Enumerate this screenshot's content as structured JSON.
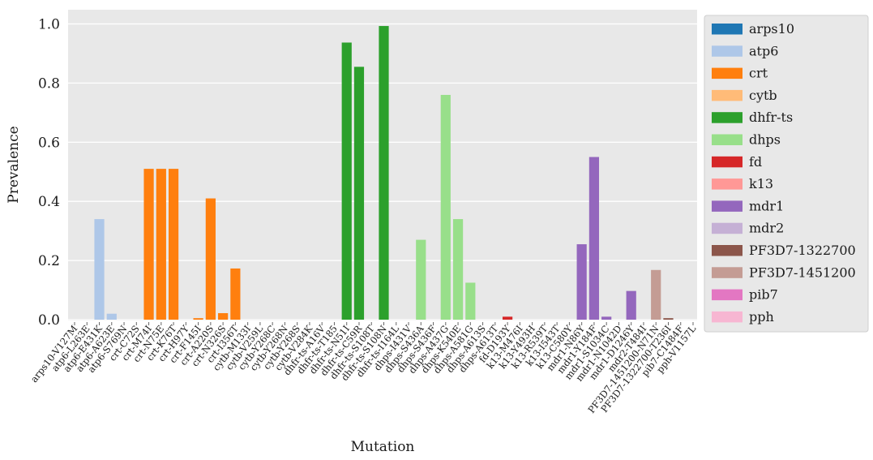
{
  "chart_data": {
    "type": "bar",
    "title": "",
    "xlabel": "Mutation",
    "ylabel": "Prevalence",
    "ylim": [
      0,
      1.05
    ],
    "yticks": [
      "0.0",
      "0.2",
      "0.4",
      "0.6",
      "0.8",
      "1.0"
    ],
    "grid": true,
    "legend_position": "right",
    "legend": [
      {
        "name": "arps10",
        "color": "#1f77b4"
      },
      {
        "name": "atp6",
        "color": "#aec7e8"
      },
      {
        "name": "crt",
        "color": "#ff7f0e"
      },
      {
        "name": "cytb",
        "color": "#ffbb78"
      },
      {
        "name": "dhfr-ts",
        "color": "#2ca02c"
      },
      {
        "name": "dhps",
        "color": "#98df8a"
      },
      {
        "name": "fd",
        "color": "#d62728"
      },
      {
        "name": "k13",
        "color": "#ff9896"
      },
      {
        "name": "mdr1",
        "color": "#9467bd"
      },
      {
        "name": "mdr2",
        "color": "#c5b0d5"
      },
      {
        "name": "PF3D7-1322700",
        "color": "#8c564b"
      },
      {
        "name": "PF3D7-1451200",
        "color": "#c49c94"
      },
      {
        "name": "pib7",
        "color": "#e377c2"
      },
      {
        "name": "pph",
        "color": "#f7b6d2"
      }
    ],
    "bars": [
      {
        "label": "arps10-V127M",
        "gene": "arps10",
        "value": 0.0
      },
      {
        "label": "atp6-L263E",
        "gene": "atp6",
        "value": 0.0
      },
      {
        "label": "atp6-E431K",
        "gene": "atp6",
        "value": 0.34
      },
      {
        "label": "atp6-A623E",
        "gene": "atp6",
        "value": 0.02
      },
      {
        "label": "atp6-S769N",
        "gene": "atp6",
        "value": 0.0
      },
      {
        "label": "crt-C72S",
        "gene": "crt",
        "value": 0.0
      },
      {
        "label": "crt-M74I",
        "gene": "crt",
        "value": 0.51
      },
      {
        "label": "crt-N75E",
        "gene": "crt",
        "value": 0.51
      },
      {
        "label": "crt-K76T",
        "gene": "crt",
        "value": 0.51
      },
      {
        "label": "crt-H97Y",
        "gene": "crt",
        "value": 0.0
      },
      {
        "label": "crt-F145I",
        "gene": "crt",
        "value": 0.005
      },
      {
        "label": "crt-A220S",
        "gene": "crt",
        "value": 0.41
      },
      {
        "label": "crt-N326S",
        "gene": "crt",
        "value": 0.022
      },
      {
        "label": "crt-I356T",
        "gene": "crt",
        "value": 0.173
      },
      {
        "label": "cytb-M133I",
        "gene": "cytb",
        "value": 0.0
      },
      {
        "label": "cytb-V259L",
        "gene": "cytb",
        "value": 0.0
      },
      {
        "label": "cytb-Y268C",
        "gene": "cytb",
        "value": 0.0
      },
      {
        "label": "cytb-Y268N",
        "gene": "cytb",
        "value": 0.0
      },
      {
        "label": "cytb-Y268S",
        "gene": "cytb",
        "value": 0.0
      },
      {
        "label": "cytb-V284K",
        "gene": "cytb",
        "value": 0.0
      },
      {
        "label": "dhfr-ts-A16V",
        "gene": "dhfr-ts",
        "value": 0.0
      },
      {
        "label": "dhfr-ts-T185",
        "gene": "dhfr-ts",
        "value": 0.0
      },
      {
        "label": "dhfr-ts-N51I",
        "gene": "dhfr-ts",
        "value": 0.937
      },
      {
        "label": "dhfr-ts-C59R",
        "gene": "dhfr-ts",
        "value": 0.855
      },
      {
        "label": "dhfr-ts-S108T",
        "gene": "dhfr-ts",
        "value": 0.0
      },
      {
        "label": "dhfr-ts-S108N",
        "gene": "dhfr-ts",
        "value": 0.993
      },
      {
        "label": "dhfr-ts-I164L",
        "gene": "dhfr-ts",
        "value": 0.0
      },
      {
        "label": "dhps-I431V",
        "gene": "dhps",
        "value": 0.0
      },
      {
        "label": "dhps-S436A",
        "gene": "dhps",
        "value": 0.27
      },
      {
        "label": "dhps-S436F",
        "gene": "dhps",
        "value": 0.0
      },
      {
        "label": "dhps-A437G",
        "gene": "dhps",
        "value": 0.76
      },
      {
        "label": "dhps-K540E",
        "gene": "dhps",
        "value": 0.34
      },
      {
        "label": "dhps-A581G",
        "gene": "dhps",
        "value": 0.125
      },
      {
        "label": "dhps-A613S",
        "gene": "dhps",
        "value": 0.0
      },
      {
        "label": "dhps-A613T",
        "gene": "dhps",
        "value": 0.0
      },
      {
        "label": "fd-D193Y",
        "gene": "fd",
        "value": 0.01
      },
      {
        "label": "k13-M476I",
        "gene": "k13",
        "value": 0.0
      },
      {
        "label": "k13-Y493H",
        "gene": "k13",
        "value": 0.0
      },
      {
        "label": "k13-R539T",
        "gene": "k13",
        "value": 0.0
      },
      {
        "label": "k13-I543T",
        "gene": "k13",
        "value": 0.0
      },
      {
        "label": "k13-C580Y",
        "gene": "k13",
        "value": 0.0
      },
      {
        "label": "mdr1-N86Y",
        "gene": "mdr1",
        "value": 0.255
      },
      {
        "label": "mdr1-Y184F",
        "gene": "mdr1",
        "value": 0.55
      },
      {
        "label": "mdr1-S1034C",
        "gene": "mdr1",
        "value": 0.01
      },
      {
        "label": "mdr1-N1042D",
        "gene": "mdr1",
        "value": 0.0
      },
      {
        "label": "mdr1-D1246Y",
        "gene": "mdr1",
        "value": 0.097
      },
      {
        "label": "mdr2-T484I",
        "gene": "mdr2",
        "value": 0.0
      },
      {
        "label": "PF3D7-1451200-N71N",
        "gene": "PF3D7-1451200",
        "value": 0.168
      },
      {
        "label": "PF3D7-1322700-T236I",
        "gene": "PF3D7-1322700",
        "value": 0.005
      },
      {
        "label": "pib7-C1484F",
        "gene": "pib7",
        "value": 0.0
      },
      {
        "label": "pph-V1157L",
        "gene": "pph",
        "value": 0.0
      }
    ]
  }
}
